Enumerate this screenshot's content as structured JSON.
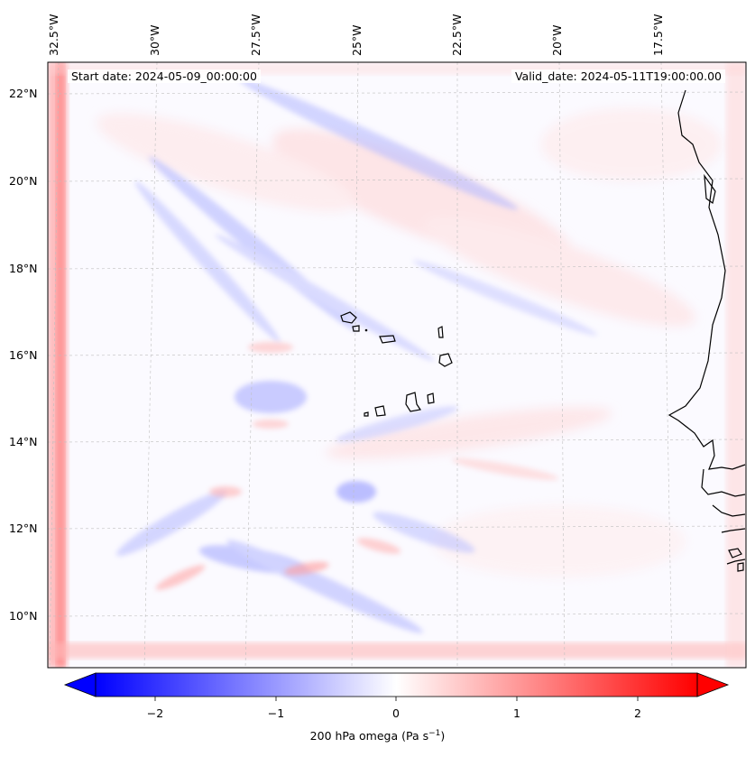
{
  "map": {
    "start_date": "Start date: 2024-05-09_00:00:00",
    "valid_date": "Valid_date: 2024-05-11T19:00:00.00",
    "lat_labels": [
      "22°N",
      "20°N",
      "18°N",
      "16°N",
      "14°N",
      "12°N",
      "10°N"
    ],
    "lon_labels": [
      "32.5°W",
      "30°W",
      "27.5°W",
      "25°W",
      "22.5°W",
      "20°W",
      "17.5°W"
    ],
    "variable": "200 hPa omega",
    "units": "Pa s",
    "units_exponent": "−1",
    "colormap": "bwr",
    "colors": {
      "negative": "#0000ff",
      "zero": "#ffffff",
      "positive": "#ff0000",
      "coast": "#000000"
    }
  },
  "colorbar": {
    "ticks": [
      "−2",
      "−1",
      "0",
      "1",
      "2"
    ],
    "range": [
      -2.65,
      2.65
    ],
    "extend": "both"
  }
}
